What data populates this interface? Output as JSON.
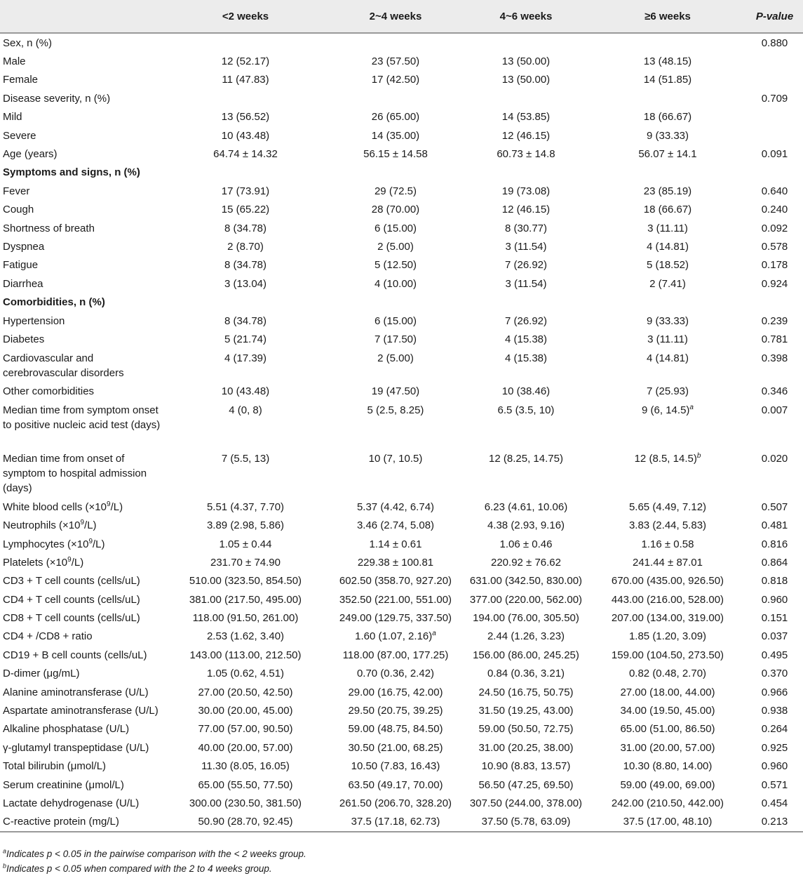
{
  "table": {
    "header": [
      "",
      "<2 weeks",
      "2~4 weeks",
      "4~6 weeks",
      "≥6 weeks",
      "P-value"
    ],
    "rows": [
      {
        "label": "Sex, n (%)",
        "vals": [
          "",
          "",
          "",
          ""
        ],
        "p": "0.880"
      },
      {
        "label": "Male",
        "vals": [
          "12 (52.17)",
          "23 (57.50)",
          "13 (50.00)",
          "13 (48.15)"
        ],
        "p": ""
      },
      {
        "label": "Female",
        "vals": [
          "11 (47.83)",
          "17 (42.50)",
          "13 (50.00)",
          "14 (51.85)"
        ],
        "p": ""
      },
      {
        "label": "Disease severity, n (%)",
        "vals": [
          "",
          "",
          "",
          ""
        ],
        "p": "0.709"
      },
      {
        "label": "Mild",
        "vals": [
          "13 (56.52)",
          "26 (65.00)",
          "14 (53.85)",
          "18 (66.67)"
        ],
        "p": ""
      },
      {
        "label": "Severe",
        "vals": [
          "10 (43.48)",
          "14 (35.00)",
          "12 (46.15)",
          "9 (33.33)"
        ],
        "p": ""
      },
      {
        "label": "Age (years)",
        "vals": [
          "64.74 ± 14.32",
          "56.15 ± 14.58",
          "60.73 ± 14.8",
          "56.07 ± 14.1"
        ],
        "p": "0.091"
      },
      {
        "label": "Symptoms and signs, n (%)",
        "vals": [
          "",
          "",
          "",
          ""
        ],
        "p": "",
        "bold": true
      },
      {
        "label": "Fever",
        "vals": [
          "17 (73.91)",
          "29 (72.5)",
          "19 (73.08)",
          "23 (85.19)"
        ],
        "p": "0.640"
      },
      {
        "label": "Cough",
        "vals": [
          "15 (65.22)",
          "28 (70.00)",
          "12 (46.15)",
          "18 (66.67)"
        ],
        "p": "0.240"
      },
      {
        "label": "Shortness of breath",
        "vals": [
          "8 (34.78)",
          "6 (15.00)",
          "8 (30.77)",
          "3 (11.11)"
        ],
        "p": "0.092"
      },
      {
        "label": "Dyspnea",
        "vals": [
          "2 (8.70)",
          "2 (5.00)",
          "3 (11.54)",
          "4 (14.81)"
        ],
        "p": "0.578"
      },
      {
        "label": "Fatigue",
        "vals": [
          "8 (34.78)",
          "5 (12.50)",
          "7 (26.92)",
          "5 (18.52)"
        ],
        "p": "0.178"
      },
      {
        "label": "Diarrhea",
        "vals": [
          "3 (13.04)",
          "4 (10.00)",
          "3 (11.54)",
          "2 (7.41)"
        ],
        "p": "0.924"
      },
      {
        "label": "Comorbidities, n (%)",
        "vals": [
          "",
          "",
          "",
          ""
        ],
        "p": "",
        "bold": true
      },
      {
        "label": "Hypertension",
        "vals": [
          "8 (34.78)",
          "6 (15.00)",
          "7 (26.92)",
          "9 (33.33)"
        ],
        "p": "0.239"
      },
      {
        "label": "Diabetes",
        "vals": [
          "5 (21.74)",
          "7 (17.50)",
          "4 (15.38)",
          "3 (11.11)"
        ],
        "p": "0.781"
      },
      {
        "label": "Cardiovascular and cerebrovascular disorders",
        "vals": [
          "4 (17.39)",
          "2 (5.00)",
          "4 (15.38)",
          "4 (14.81)"
        ],
        "p": "0.398",
        "lines": 2
      },
      {
        "label": "Other comorbidities",
        "vals": [
          "10 (43.48)",
          "19 (47.50)",
          "10 (38.46)",
          "7 (25.93)"
        ],
        "p": "0.346"
      },
      {
        "label": "Median time from symptom onset to positive nucleic acid test (days)",
        "vals": [
          "4 (0, 8)",
          "5 (2.5, 8.25)",
          "6.5 (3.5, 10)",
          "9 (6, 14.5)"
        ],
        "sup": [
          "",
          "",
          "",
          "a"
        ],
        "p": "0.007",
        "lines": 3
      },
      {
        "label": "Median time from onset of symptom to hospital admission (days)",
        "vals": [
          "7 (5.5, 13)",
          "10 (7, 10.5)",
          "12 (8.25, 14.75)",
          "12 (8.5, 14.5)"
        ],
        "sup": [
          "",
          "",
          "",
          "b"
        ],
        "p": "0.020",
        "lines": 3
      },
      {
        "label": "White blood cells (×10",
        "unit_sup": "9",
        "unit_end": "/L)",
        "vals": [
          "5.51 (4.37, 7.70)",
          "5.37 (4.42, 6.74)",
          "6.23 (4.61, 10.06)",
          "5.65 (4.49, 7.12)"
        ],
        "p": "0.507"
      },
      {
        "label": "Neutrophils (×10",
        "unit_sup": "9",
        "unit_end": "/L)",
        "vals": [
          "3.89 (2.98, 5.86)",
          "3.46 (2.74, 5.08)",
          "4.38 (2.93, 9.16)",
          "3.83 (2.44, 5.83)"
        ],
        "p": "0.481"
      },
      {
        "label": "Lymphocytes (×10",
        "unit_sup": "9",
        "unit_end": "/L)",
        "vals": [
          "1.05 ± 0.44",
          "1.14 ± 0.61",
          "1.06 ± 0.46",
          "1.16 ± 0.58"
        ],
        "p": "0.816"
      },
      {
        "label": "Platelets (×10",
        "unit_sup": "9",
        "unit_end": "/L)",
        "vals": [
          "231.70 ± 74.90",
          "229.38 ± 100.81",
          "220.92 ± 76.62",
          "241.44 ± 87.01"
        ],
        "p": "0.864"
      },
      {
        "label": "CD3 + T cell counts (cells/uL)",
        "vals": [
          "510.00 (323.50, 854.50)",
          "602.50 (358.70, 927.20)",
          "631.00 (342.50, 830.00)",
          "670.00 (435.00, 926.50)"
        ],
        "p": "0.818"
      },
      {
        "label": "CD4 + T cell counts (cells/uL)",
        "vals": [
          "381.00 (217.50, 495.00)",
          "352.50 (221.00, 551.00)",
          "377.00 (220.00, 562.00)",
          "443.00 (216.00, 528.00)"
        ],
        "p": "0.960"
      },
      {
        "label": "CD8 + T cell counts (cells/uL)",
        "vals": [
          "118.00 (91.50, 261.00)",
          "249.00 (129.75, 337.50)",
          "194.00 (76.00, 305.50)",
          "207.00 (134.00, 319.00)"
        ],
        "p": "0.151"
      },
      {
        "label": "CD4 + /CD8 + ratio",
        "vals": [
          "2.53 (1.62, 3.40)",
          "1.60 (1.07, 2.16)",
          "2.44 (1.26, 3.23)",
          "1.85 (1.20, 3.09)"
        ],
        "sup": [
          "",
          "a",
          "",
          ""
        ],
        "p": "0.037"
      },
      {
        "label": "CD19 + B cell counts (cells/uL)",
        "vals": [
          "143.00 (113.00, 212.50)",
          "118.00 (87.00, 177.25)",
          "156.00 (86.00, 245.25)",
          "159.00 (104.50, 273.50)"
        ],
        "p": "0.495"
      },
      {
        "label": "D-dimer (μg/mL)",
        "vals": [
          "1.05 (0.62, 4.51)",
          "0.70 (0.36, 2.42)",
          "0.84 (0.36, 3.21)",
          "0.82 (0.48, 2.70)"
        ],
        "p": "0.370"
      },
      {
        "label": "Alanine aminotransferase (U/L)",
        "vals": [
          "27.00 (20.50, 42.50)",
          "29.00 (16.75, 42.00)",
          "24.50 (16.75, 50.75)",
          "27.00 (18.00, 44.00)"
        ],
        "p": "0.966"
      },
      {
        "label": "Aspartate aminotransferase (U/L)",
        "vals": [
          "30.00 (20.00, 45.00)",
          "29.50 (20.75, 39.25)",
          "31.50 (19.25, 43.00)",
          "34.00 (19.50, 45.00)"
        ],
        "p": "0.938"
      },
      {
        "label": "Alkaline phosphatase (U/L)",
        "vals": [
          "77.00 (57.00, 90.50)",
          "59.00 (48.75, 84.50)",
          "59.00 (50.50, 72.75)",
          "65.00 (51.00, 86.50)"
        ],
        "p": "0.264"
      },
      {
        "label": "γ-glutamyl transpeptidase (U/L)",
        "vals": [
          "40.00 (20.00, 57.00)",
          "30.50 (21.00, 68.25)",
          "31.00 (20.25, 38.00)",
          "31.00 (20.00, 57.00)"
        ],
        "p": "0.925"
      },
      {
        "label": "Total bilirubin (μmol/L)",
        "vals": [
          "11.30 (8.05, 16.05)",
          "10.50 (7.83, 16.43)",
          "10.90 (8.83, 13.57)",
          "10.30 (8.80, 14.00)"
        ],
        "p": "0.960"
      },
      {
        "label": "Serum creatinine (μmol/L)",
        "vals": [
          "65.00 (55.50, 77.50)",
          "63.50 (49.17, 70.00)",
          "56.50 (47.25, 69.50)",
          "59.00 (49.00, 69.00)"
        ],
        "p": "0.571"
      },
      {
        "label": "Lactate dehydrogenase (U/L)",
        "vals": [
          "300.00 (230.50, 381.50)",
          "261.50 (206.70, 328.20)",
          "307.50 (244.00, 378.00)",
          "242.00 (210.50, 442.00)"
        ],
        "p": "0.454"
      },
      {
        "label": "C-reactive protein (mg/L)",
        "vals": [
          "50.90 (28.70, 92.45)",
          "37.5 (17.18, 62.73)",
          "37.50 (5.78, 63.09)",
          "37.5 (17.00, 48.10)"
        ],
        "p": "0.213"
      }
    ]
  },
  "footnotes": [
    {
      "mark": "a",
      "text": "Indicates p < 0.05 in the pairwise comparison with the < 2 weeks group."
    },
    {
      "mark": "b",
      "text": "Indicates p < 0.05 when compared with the 2 to 4 weeks group."
    }
  ]
}
